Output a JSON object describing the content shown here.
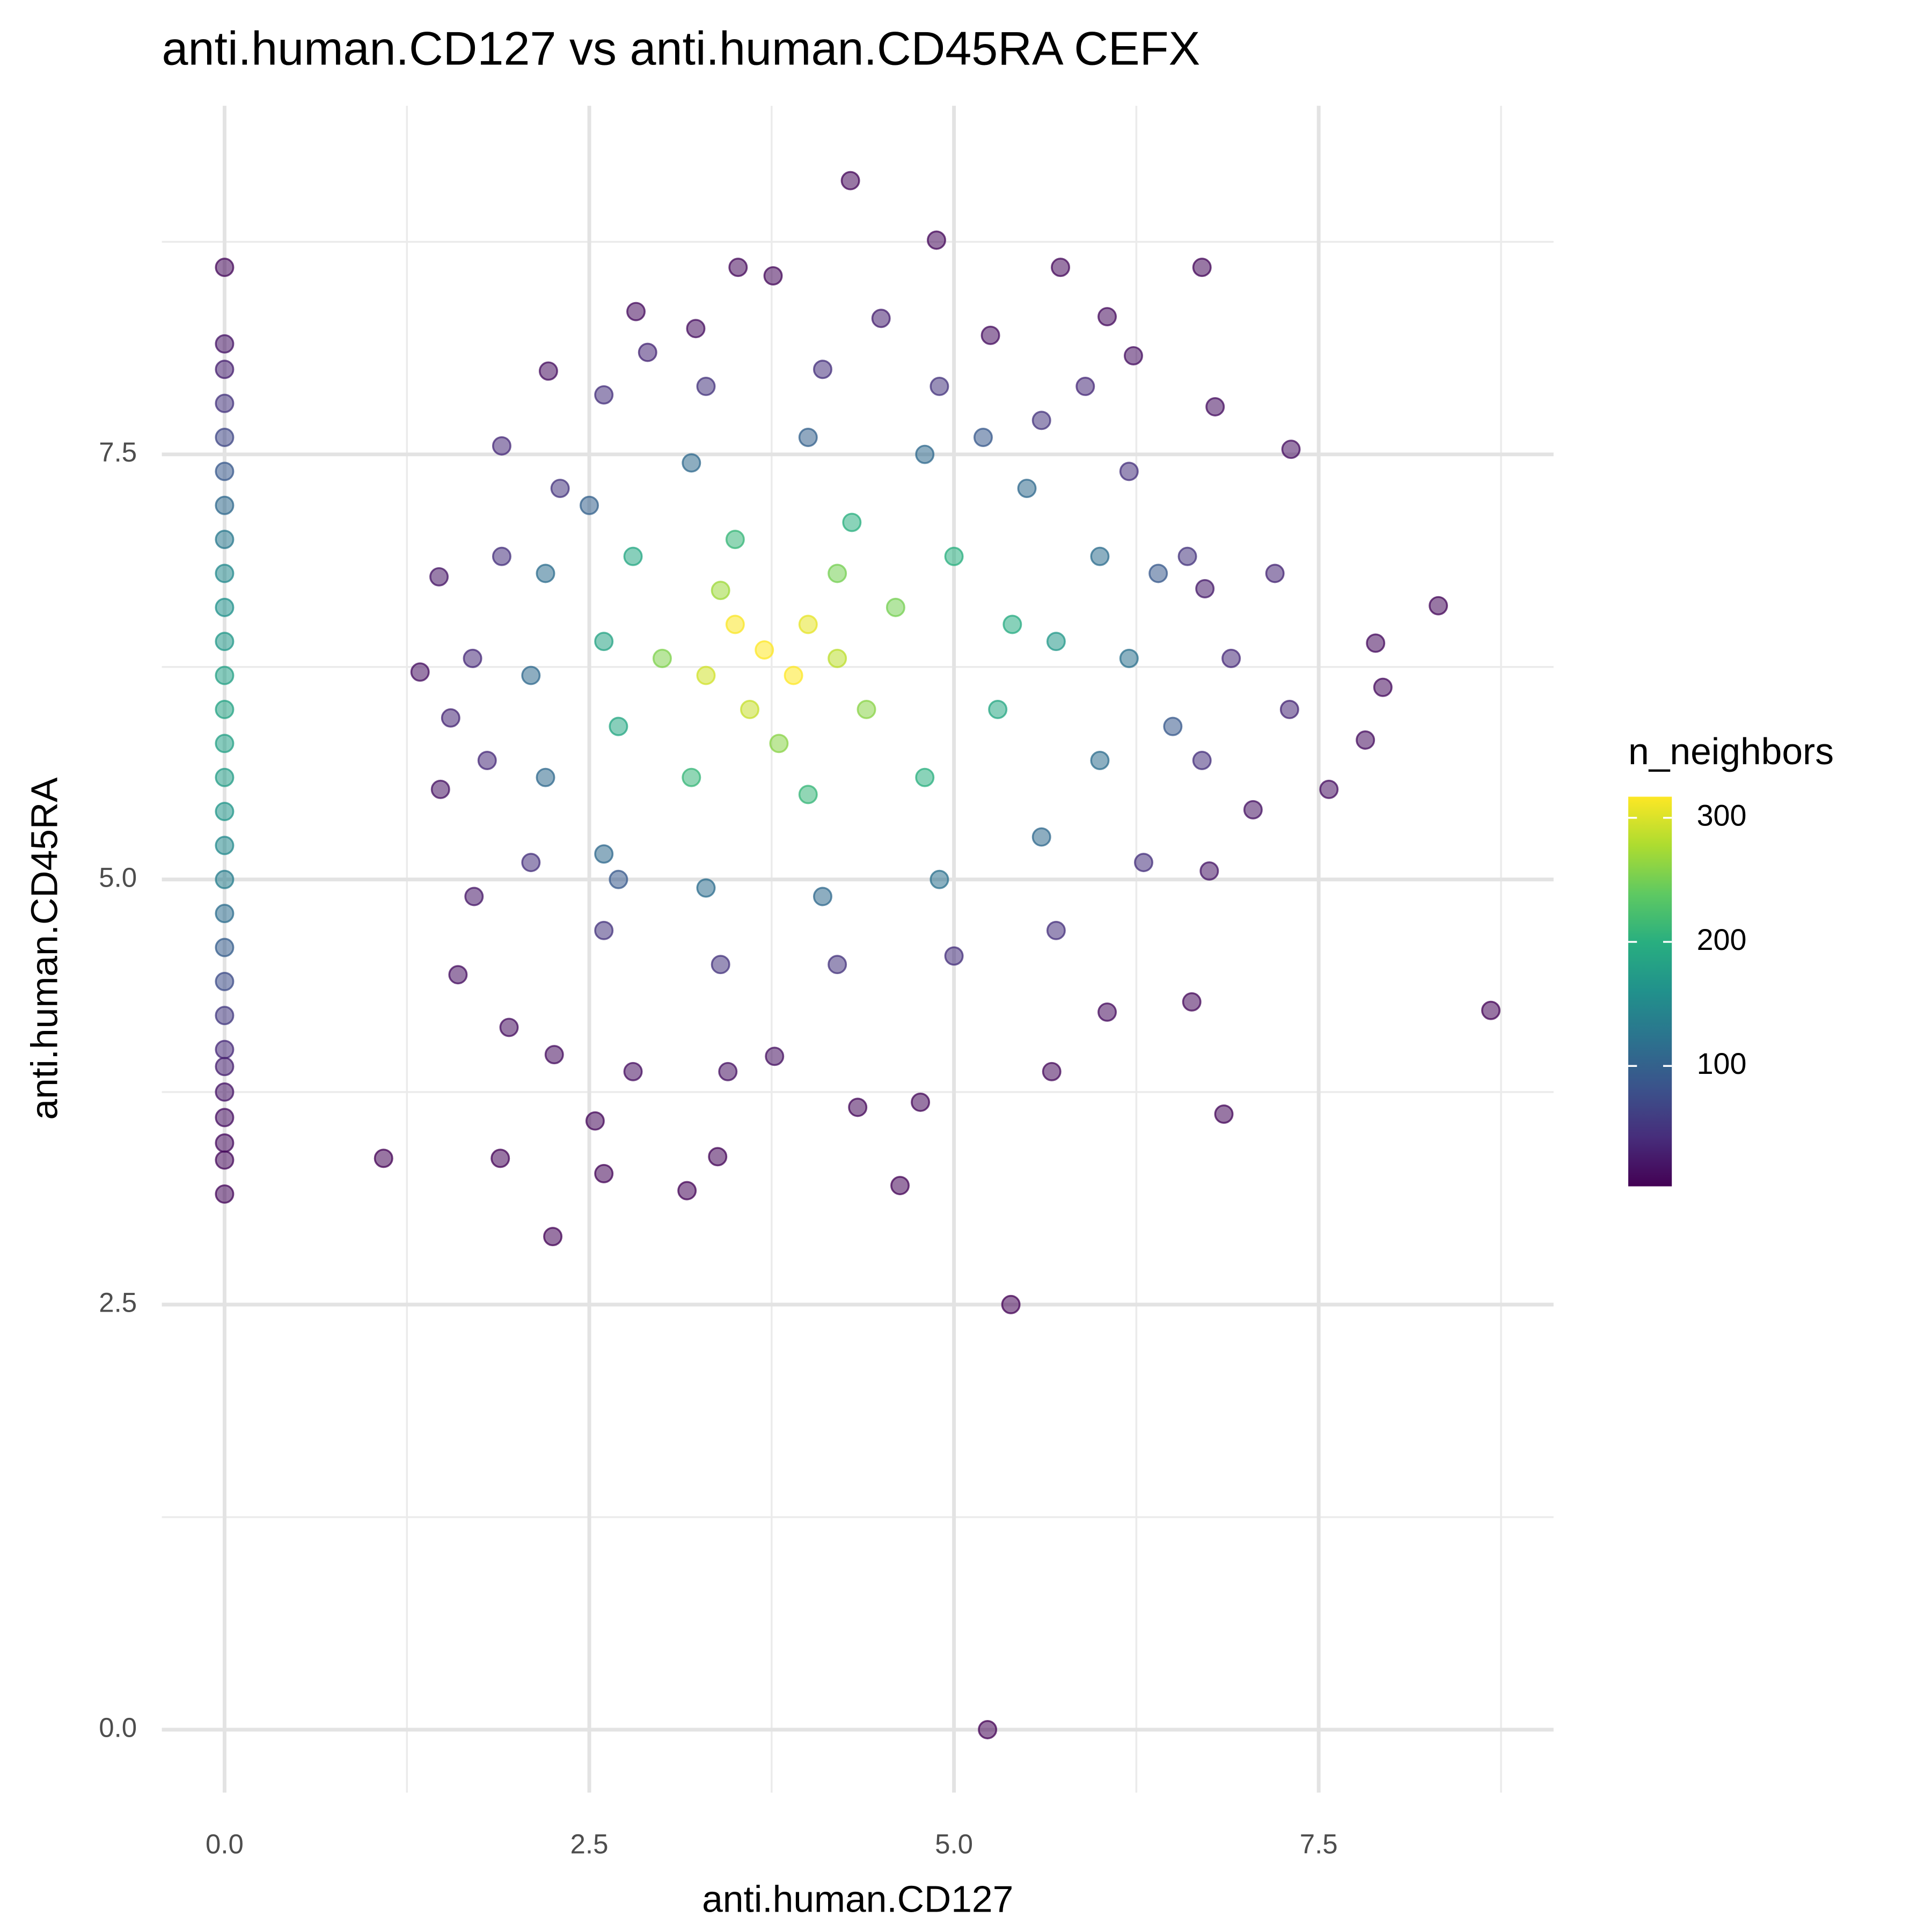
{
  "chart_data": {
    "type": "scatter",
    "title": "anti.human.CD127 vs anti.human.CD45RA CEFX",
    "xlabel": "anti.human.CD127",
    "ylabel": "anti.human.CD45RA",
    "xlim": [
      -0.43,
      9.11
    ],
    "ylim": [
      -0.37,
      9.55
    ],
    "xticks": [
      {
        "value": 0,
        "label": "0.0"
      },
      2.5,
      {
        "value": 5,
        "label": "5.0"
      },
      7.5
    ],
    "yticks": [
      {
        "value": 0,
        "label": "0.0"
      },
      2.5,
      {
        "value": 5,
        "label": "5.0"
      },
      7.5
    ],
    "xminor": [
      1.25,
      3.75,
      6.25,
      8.75
    ],
    "yminor": [
      1.25,
      3.75,
      6.25,
      8.75
    ],
    "grid": true,
    "point_alpha": 0.55,
    "colorbar": {
      "title": "n_neighbors",
      "lim": [
        3,
        317
      ],
      "ticks": [
        100,
        200,
        300
      ],
      "colors": [
        "#440154",
        "#472d7b",
        "#3b528b",
        "#2c728e",
        "#21918c",
        "#28ae80",
        "#5ec962",
        "#addc30",
        "#fde725"
      ]
    },
    "x": [
      4.29,
      4.88,
      3.52,
      3.76,
      5.73,
      6.7,
      8.32,
      8.68,
      6.85,
      5.39,
      5.23,
      2.25,
      1.09,
      1.89,
      3.17,
      4.63,
      2.6,
      3.38,
      2.54,
      4.34,
      4.77,
      5.67,
      7.94,
      7.89,
      7.82,
      7.57,
      7.31,
      2.22,
      2.82,
      3.23,
      5.25,
      6.05,
      6.23,
      1.34,
      1.47,
      1.48,
      1.71,
      1.6,
      1.95,
      2.26,
      2.8,
      3.45,
      3.77,
      6.05,
      6.63,
      7.05,
      6.75,
      6.72,
      6.79,
      0,
      0,
      0,
      0,
      0,
      0,
      0,
      0,
      0,
      0,
      0,
      0,
      0,
      0,
      0,
      0,
      0,
      0,
      0,
      0,
      0,
      0,
      0,
      0,
      0,
      0,
      0,
      0,
      0,
      1.9,
      2.6,
      3.3,
      4.1,
      4.9,
      5.6,
      6.2,
      6.6,
      6.9,
      6.7,
      6.3,
      5.7,
      5.0,
      4.2,
      3.4,
      2.6,
      2.1,
      1.8,
      1.7,
      1.9,
      2.3,
      7.2,
      7.3,
      1.55,
      5.9,
      4.5,
      2.9,
      2.5,
      3.2,
      4.0,
      4.8,
      5.5,
      6.0,
      6.2,
      6.0,
      5.6,
      4.9,
      4.1,
      3.3,
      2.6,
      2.2,
      2.1,
      2.2,
      2.7,
      5.2,
      6.4,
      6.5,
      2.8,
      3.5,
      4.3,
      5.0,
      5.4,
      5.3,
      4.8,
      4.0,
      3.2,
      2.7,
      2.6,
      5.7,
      4.6,
      3.0,
      4.2,
      3.8,
      4.4,
      3.4,
      4.2,
      3.6,
      3.3,
      4.0,
      3.9,
      3.5,
      3.7
    ],
    "y": [
      9.11,
      8.76,
      8.6,
      8.55,
      8.6,
      8.6,
      6.61,
      4.23,
      3.62,
      2.5,
      0,
      2.9,
      3.36,
      3.36,
      3.17,
      3.2,
      3.27,
      3.37,
      3.58,
      3.66,
      3.69,
      3.87,
      6.13,
      6.39,
      5.82,
      5.53,
      7.53,
      7.99,
      8.34,
      8.24,
      8.2,
      8.31,
      8.08,
      6.22,
      6.78,
      5.53,
      4.9,
      4.44,
      4.13,
      3.97,
      3.87,
      3.87,
      3.96,
      4.22,
      4.28,
      5.41,
      5.05,
      6.71,
      7.78,
      8.6,
      8.15,
      8.0,
      7.8,
      7.6,
      7.4,
      7.2,
      7.0,
      6.8,
      6.6,
      6.4,
      6.2,
      6.0,
      5.8,
      5.6,
      5.4,
      5.2,
      5.0,
      4.8,
      4.6,
      4.4,
      4.2,
      4.0,
      3.9,
      3.75,
      3.6,
      3.45,
      3.35,
      3.15,
      7.55,
      7.85,
      7.9,
      8.0,
      7.9,
      7.7,
      7.4,
      6.9,
      6.3,
      5.7,
      5.1,
      4.7,
      4.55,
      4.5,
      4.5,
      4.7,
      5.1,
      5.7,
      6.3,
      6.9,
      7.3,
      6.8,
      6.0,
      5.95,
      7.9,
      8.3,
      8.1,
      7.2,
      7.45,
      7.6,
      7.5,
      7.3,
      6.9,
      6.3,
      5.7,
      5.25,
      5.0,
      4.9,
      4.95,
      5.15,
      5.6,
      6.2,
      6.8,
      5.0,
      7.6,
      6.8,
      5.9,
      6.9,
      7.0,
      7.1,
      6.9,
      6.5,
      6.0,
      5.6,
      5.5,
      5.6,
      5.9,
      6.4,
      6.4,
      6.6,
      6.3,
      6.8,
      5.8,
      6.0,
      6.7,
      6.3,
      6.0,
      6.2,
      6.5,
      6.2,
      6.5,
      6.35
    ],
    "n_neighbors": [
      8,
      8,
      10,
      10,
      10,
      8,
      8,
      6,
      8,
      5,
      5,
      6,
      5,
      6,
      6,
      6,
      7,
      7,
      8,
      8,
      9,
      10,
      12,
      12,
      14,
      15,
      15,
      14,
      12,
      14,
      14,
      12,
      15,
      15,
      20,
      18,
      22,
      15,
      14,
      14,
      15,
      16,
      16,
      12,
      10,
      18,
      20,
      25,
      15,
      10,
      20,
      30,
      50,
      70,
      90,
      110,
      130,
      150,
      160,
      170,
      180,
      185,
      180,
      175,
      165,
      150,
      135,
      115,
      95,
      75,
      55,
      40,
      30,
      20,
      15,
      12,
      10,
      8,
      40,
      45,
      50,
      45,
      50,
      50,
      45,
      50,
      40,
      45,
      45,
      45,
      45,
      50,
      50,
      50,
      45,
      40,
      40,
      45,
      50,
      35,
      35,
      35,
      40,
      30,
      35,
      100,
      110,
      100,
      110,
      110,
      115,
      120,
      115,
      110,
      120,
      110,
      115,
      110,
      110,
      110,
      115,
      90,
      90,
      90,
      90,
      190,
      210,
      200,
      200,
      195,
      190,
      200,
      210,
      210,
      190,
      185,
      170,
      250,
      255,
      250,
      260,
      260,
      270,
      285,
      290,
      295,
      305,
      318,
      315,
      325
    ]
  }
}
